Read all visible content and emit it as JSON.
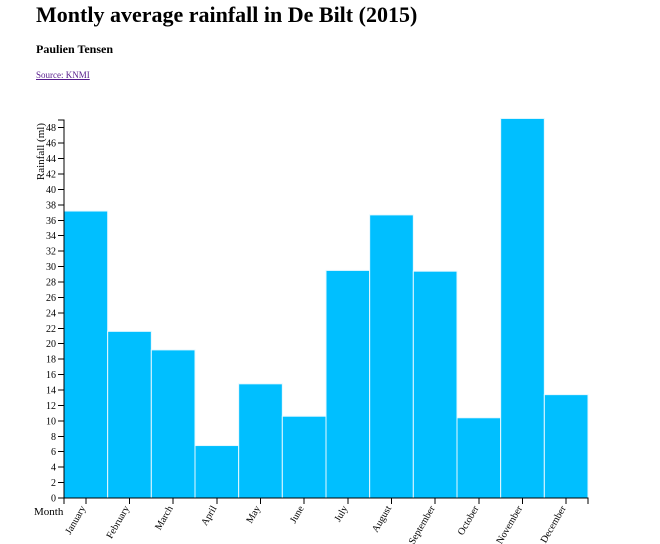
{
  "header": {
    "title": "Montly average rainfall in De Bilt (2015)",
    "author": "Paulien Tensen",
    "source_link": "Source: KNMI"
  },
  "chart_data": {
    "type": "bar",
    "title": "Montly average rainfall in De Bilt (2015)",
    "xlabel": "Month",
    "ylabel": "Rainfall (ml)",
    "categories": [
      "January",
      "February",
      "March",
      "April",
      "May",
      "June",
      "July",
      "August",
      "September",
      "October",
      "November",
      "December"
    ],
    "values": [
      37.2,
      21.6,
      19.2,
      6.8,
      14.8,
      10.6,
      29.5,
      36.7,
      29.4,
      10.4,
      49.2,
      13.4
    ],
    "ylim": [
      0,
      49
    ],
    "yticks": [
      0,
      2,
      4,
      6,
      8,
      10,
      12,
      14,
      16,
      18,
      20,
      22,
      24,
      26,
      28,
      30,
      32,
      34,
      36,
      38,
      40,
      42,
      44,
      46,
      48
    ],
    "grid": false,
    "bar_color": "#00bfff",
    "legend": "none"
  }
}
